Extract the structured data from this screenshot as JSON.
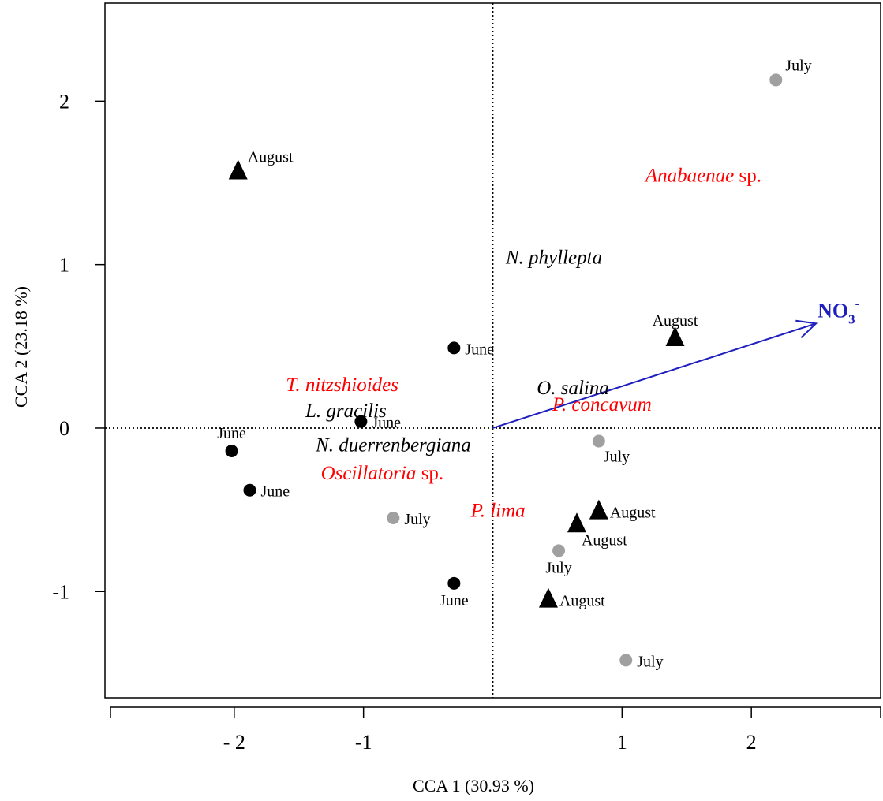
{
  "chart_data": {
    "type": "scatter",
    "xlabel": "CCA 1 (30.93 %)",
    "ylabel": "CCA 2  (23.18 %)",
    "xlim": [
      -3.0,
      3.0
    ],
    "ylim": [
      -1.65,
      2.6
    ],
    "x_ticks": [
      -2,
      -1,
      1,
      2
    ],
    "x_tick_labels": [
      "- 2",
      "-1",
      "1",
      "2"
    ],
    "y_ticks": [
      2,
      1,
      0,
      -1
    ],
    "y_tick_labels": [
      "2",
      "1",
      "0",
      "-1"
    ],
    "reference_lines": {
      "x": 0,
      "y": 0
    },
    "colors": {
      "june_marker": "#000000",
      "july_marker": "#a0a0a0",
      "august_marker": "#000000",
      "species_red": "#ff0000",
      "species_black": "#000000",
      "vector": "#1f1fbf"
    },
    "sites": [
      {
        "month": "June",
        "marker": "circle",
        "x": -2.02,
        "y": -0.14,
        "label": "June",
        "label_pos": "above"
      },
      {
        "month": "June",
        "marker": "circle",
        "x": -1.88,
        "y": -0.38,
        "label": "June",
        "label_pos": "right"
      },
      {
        "month": "June",
        "marker": "circle",
        "x": -1.02,
        "y": 0.04,
        "label": "June",
        "label_pos": "right"
      },
      {
        "month": "June",
        "marker": "circle",
        "x": -0.3,
        "y": 0.49,
        "label": "June",
        "label_pos": "right"
      },
      {
        "month": "June",
        "marker": "circle",
        "x": -0.3,
        "y": -0.95,
        "label": "June",
        "label_pos": "below"
      },
      {
        "month": "July",
        "marker": "circle",
        "x": 2.19,
        "y": 2.13,
        "label": "July",
        "label_pos": "above-right"
      },
      {
        "month": "July",
        "marker": "circle",
        "x": -0.77,
        "y": -0.55,
        "label": "July",
        "label_pos": "right"
      },
      {
        "month": "July",
        "marker": "circle",
        "x": 0.82,
        "y": -0.08,
        "label": "July",
        "label_pos": "below-right"
      },
      {
        "month": "July",
        "marker": "circle",
        "x": 0.51,
        "y": -0.75,
        "label": "July",
        "label_pos": "below"
      },
      {
        "month": "July",
        "marker": "circle",
        "x": 1.03,
        "y": -1.42,
        "label": "July",
        "label_pos": "right"
      },
      {
        "month": "August",
        "marker": "triangle",
        "x": -1.97,
        "y": 1.57,
        "label": "August",
        "label_pos": "above-right"
      },
      {
        "month": "August",
        "marker": "triangle",
        "x": 1.41,
        "y": 0.55,
        "label": "August",
        "label_pos": "above"
      },
      {
        "month": "August",
        "marker": "triangle",
        "x": 0.82,
        "y": -0.51,
        "label": "August",
        "label_pos": "right"
      },
      {
        "month": "August",
        "marker": "triangle",
        "x": 0.65,
        "y": -0.59,
        "label": "August",
        "label_pos": "below-right"
      },
      {
        "month": "August",
        "marker": "triangle",
        "x": 0.43,
        "y": -1.05,
        "label": "August",
        "label_pos": "right"
      }
    ],
    "species": [
      {
        "name": "Anabaenae",
        "suffix": " sp.",
        "x": 1.18,
        "y": 1.55,
        "color": "red"
      },
      {
        "name": "N. phyllepta",
        "suffix": "",
        "x": 0.1,
        "y": 1.05,
        "color": "black"
      },
      {
        "name": "T. nitzshioides",
        "suffix": "",
        "x": -1.6,
        "y": 0.27,
        "color": "red"
      },
      {
        "name": "O. salina",
        "suffix": "",
        "x": 0.34,
        "y": 0.25,
        "color": "black"
      },
      {
        "name": "L. gracilis",
        "suffix": "",
        "x": -1.45,
        "y": 0.11,
        "color": "black"
      },
      {
        "name": "P. concavum",
        "suffix": "",
        "x": 0.46,
        "y": 0.15,
        "color": "red"
      },
      {
        "name": "N. duerrenbergiana",
        "suffix": "",
        "x": -1.37,
        "y": -0.1,
        "color": "black"
      },
      {
        "name": "Oscillatoria",
        "suffix": " sp.",
        "x": -1.33,
        "y": -0.27,
        "color": "red"
      },
      {
        "name": "P. lima",
        "suffix": "",
        "x": -0.17,
        "y": -0.5,
        "color": "red"
      }
    ],
    "env_vectors": [
      {
        "label": "NO",
        "sub": "3",
        "sup": "-",
        "x": 2.5,
        "y": 0.64
      }
    ]
  }
}
